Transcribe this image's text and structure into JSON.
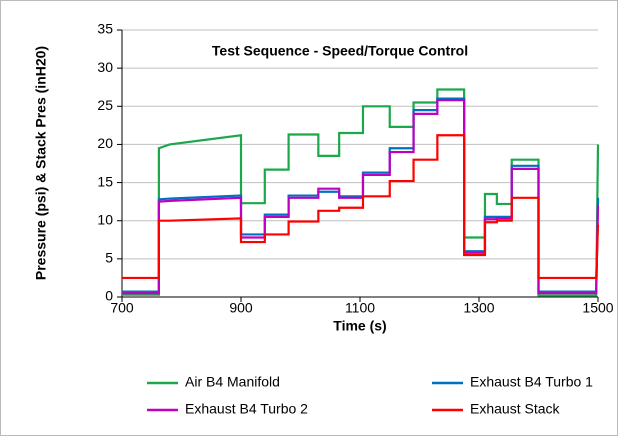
{
  "chart_data": {
    "type": "line",
    "title": "Test Sequence - Speed/Torque Control",
    "x_label": "Time (s)",
    "y_label": "Pressure (psi)  & Stack Pres (inH20)",
    "x": [
      700,
      762,
      762,
      780,
      900,
      900,
      940,
      940,
      980,
      980,
      1030,
      1030,
      1065,
      1065,
      1105,
      1105,
      1150,
      1150,
      1190,
      1190,
      1230,
      1230,
      1275,
      1275,
      1310,
      1310,
      1330,
      1330,
      1355,
      1355,
      1400,
      1400,
      1497,
      1500
    ],
    "series": [
      {
        "name": "Air B4 Manifold",
        "color": "#1aa84a",
        "values": [
          0.3,
          0.3,
          19.5,
          20.0,
          21.2,
          12.3,
          12.3,
          16.7,
          16.7,
          21.3,
          21.3,
          18.5,
          18.5,
          21.5,
          21.5,
          25.0,
          25.0,
          22.3,
          22.3,
          25.5,
          25.5,
          27.2,
          27.2,
          7.8,
          7.8,
          13.5,
          13.5,
          12.2,
          12.2,
          18.0,
          18.0,
          0.2,
          0.2,
          20.0
        ]
      },
      {
        "name": "Exhaust B4 Turbo 1",
        "color": "#0070c0",
        "values": [
          0.7,
          0.7,
          12.8,
          12.9,
          13.3,
          8.2,
          8.2,
          10.8,
          10.8,
          13.3,
          13.3,
          13.8,
          13.8,
          13.2,
          13.2,
          16.3,
          16.3,
          19.5,
          19.5,
          24.5,
          24.5,
          26.0,
          26.0,
          6.0,
          6.0,
          10.5,
          10.5,
          10.5,
          10.5,
          17.2,
          17.2,
          0.7,
          0.7,
          13.0
        ]
      },
      {
        "name": "Exhaust B4 Turbo 2",
        "color": "#c000c0",
        "values": [
          0.5,
          0.5,
          12.5,
          12.6,
          13.0,
          7.8,
          7.8,
          10.5,
          10.5,
          13.0,
          13.0,
          14.2,
          14.2,
          13.0,
          13.0,
          16.0,
          16.0,
          19.0,
          19.0,
          24.0,
          24.0,
          25.8,
          25.8,
          5.8,
          5.8,
          10.2,
          10.2,
          10.3,
          10.3,
          16.8,
          16.8,
          0.5,
          0.5,
          12.0
        ]
      },
      {
        "name": "Exhaust Stack",
        "color": "#ff0000",
        "values": [
          2.5,
          2.5,
          10.0,
          10.0,
          10.3,
          7.2,
          7.2,
          8.2,
          8.2,
          9.9,
          9.9,
          11.3,
          11.3,
          11.7,
          11.7,
          13.2,
          13.2,
          15.2,
          15.2,
          18.0,
          18.0,
          21.2,
          21.2,
          5.5,
          5.5,
          9.8,
          9.8,
          10.0,
          10.0,
          13.0,
          13.0,
          2.5,
          2.5,
          9.5
        ]
      }
    ],
    "xlim": [
      700,
      1500
    ],
    "xticks": [
      700,
      900,
      1100,
      1300,
      1500
    ],
    "ylim": [
      0,
      35
    ],
    "yticks": [
      0,
      5,
      10,
      15,
      20,
      25,
      30,
      35
    ],
    "grid": true
  }
}
